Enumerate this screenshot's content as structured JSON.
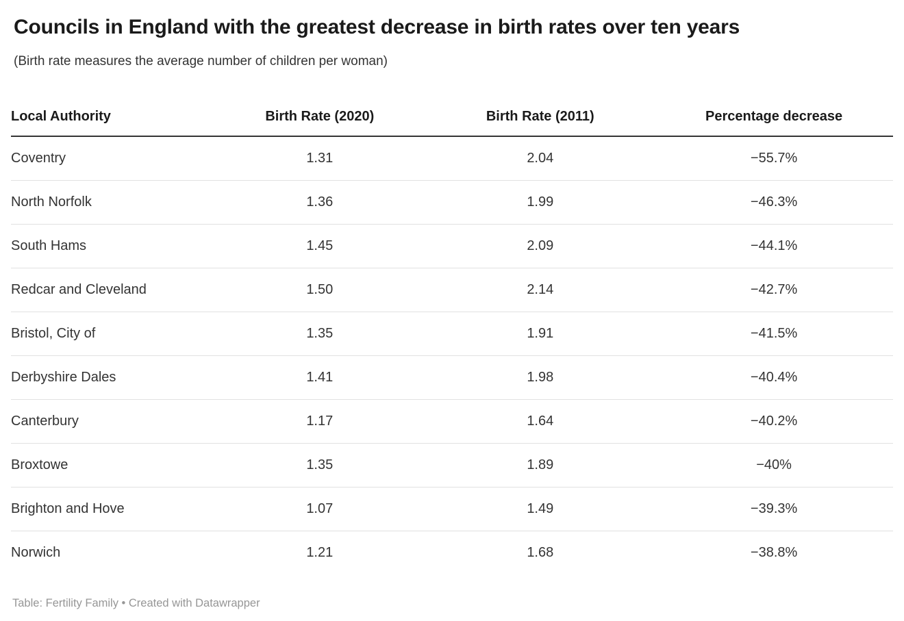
{
  "header": {
    "title": "Councils in England with the greatest decrease in birth rates over ten years",
    "subtitle": "(Birth rate measures the average number of children per woman)"
  },
  "chart_data": {
    "type": "table",
    "title": "Councils in England with the greatest decrease in birth rates over ten years",
    "subtitle": "(Birth rate measures the average number of children per woman)",
    "columns": [
      "Local Authority",
      "Birth Rate (2020)",
      "Birth Rate (2011)",
      "Percentage decrease"
    ],
    "rows": [
      [
        "Coventry",
        "1.31",
        "2.04",
        "−55.7%"
      ],
      [
        "North Norfolk",
        "1.36",
        "1.99",
        "−46.3%"
      ],
      [
        "South Hams",
        "1.45",
        "2.09",
        "−44.1%"
      ],
      [
        "Redcar and Cleveland",
        "1.50",
        "2.14",
        "−42.7%"
      ],
      [
        "Bristol, City of",
        "1.35",
        "1.91",
        "−41.5%"
      ],
      [
        "Derbyshire Dales",
        "1.41",
        "1.98",
        "−40.4%"
      ],
      [
        "Canterbury",
        "1.17",
        "1.64",
        "−40.2%"
      ],
      [
        "Broxtowe",
        "1.35",
        "1.89",
        "−40%"
      ],
      [
        "Brighton and Hove",
        "1.07",
        "1.49",
        "−39.3%"
      ],
      [
        "Norwich",
        "1.21",
        "1.68",
        "−38.8%"
      ]
    ],
    "numeric": {
      "birth_rate_2020": [
        1.31,
        1.36,
        1.45,
        1.5,
        1.35,
        1.41,
        1.17,
        1.35,
        1.07,
        1.21
      ],
      "birth_rate_2011": [
        2.04,
        1.99,
        2.09,
        2.14,
        1.91,
        1.98,
        1.64,
        1.89,
        1.49,
        1.68
      ],
      "percentage_decrease": [
        -55.7,
        -46.3,
        -44.1,
        -42.7,
        -41.5,
        -40.4,
        -40.2,
        -40.0,
        -39.3,
        -38.8
      ]
    },
    "layout": {
      "first_column_align": "left",
      "value_columns_align": "center",
      "header_rule": true,
      "row_dividers": true
    }
  },
  "footer": {
    "text": "Table: Fertility Family • Created with Datawrapper"
  },
  "colors": {
    "title_text": "#1a1a1a",
    "body_text": "#333333",
    "header_rule": "#333333",
    "row_divider": "#e1e1e1",
    "footer_text": "#969696",
    "background": "#ffffff"
  }
}
